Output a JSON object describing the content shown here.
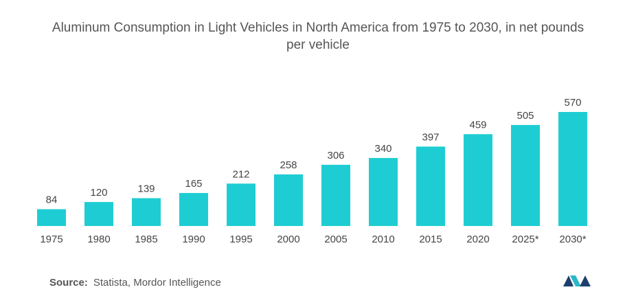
{
  "chart_data": {
    "type": "bar",
    "title": "Aluminum Consumption in Light Vehicles in North America from 1975 to 2030, in net pounds per vehicle",
    "categories": [
      "1975",
      "1980",
      "1985",
      "1990",
      "1995",
      "2000",
      "2005",
      "2010",
      "2015",
      "2020",
      "2025*",
      "2030*"
    ],
    "values": [
      84,
      120,
      139,
      165,
      212,
      258,
      306,
      340,
      397,
      459,
      505,
      570
    ],
    "color": "#1ecdd3",
    "source_label": "Source:",
    "source": "Statista, Mordor Intelligence"
  }
}
